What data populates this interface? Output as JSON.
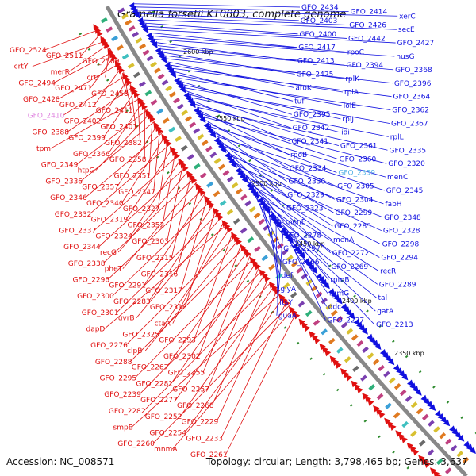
{
  "title": "Gramella forsetii KT0803, complete genome",
  "footer": {
    "accession": "Accession: NC_008571",
    "summary": "Topology: circular; Length: 3,798,465 bp; Genes: 3,637"
  },
  "colors": {
    "backbone": "#888888",
    "forward": "#e01010",
    "reverse": "#1010e0",
    "tick": "#2e8b2e",
    "highlight_blue": "#5ab4e6",
    "highlight_pink": "#e088e0"
  },
  "kbp_ticks": [
    "2600 kbp",
    "2550 kbp",
    "2500 kbp",
    "2450 kbp",
    "2400 kbp",
    "2350 kbp"
  ],
  "labels_left": [
    "GFO_2524",
    "GFO_2511",
    "GFO_2509",
    "crtY",
    "merR",
    "crtI",
    "GFO_2494",
    "GFO_2471",
    "GFO_2458",
    "GFO_2428",
    "GFO_2412",
    "GFO_2411",
    "GFO_2410",
    "GFO_2402",
    "GFO_2401",
    "GFO_2388",
    "GFO_2399",
    "GFO_2382",
    "tpm",
    "GFO_2366",
    "GFO_2358",
    "GFO_2349",
    "htpG",
    "GFO_2351",
    "GFO_2336",
    "GFO_2357",
    "GFO_2347",
    "GFO_2346",
    "GFO_2340",
    "GFO_2327",
    "GFO_2332",
    "GFO_2319",
    "GFO_2352",
    "GFO_2337",
    "GFO_2324",
    "GFO_2303",
    "GFO_2344",
    "recG",
    "GFO_2315",
    "GFO_2338",
    "pheT",
    "GFO_2316",
    "GFO_2296",
    "GFO_2291",
    "GFO_2317",
    "GFO_2300",
    "GFO_2283",
    "GFO_2318",
    "GFO_2301",
    "uvrB",
    "ctaA",
    "dapD",
    "GFO_2325",
    "GFO_2293",
    "GFO_2276",
    "clpB",
    "GFO_2302",
    "GFO_2288",
    "GFO_2267",
    "GFO_2255",
    "GFO_2295",
    "GFO_2281",
    "GFO_2257",
    "GFO_2239",
    "GFO_2277",
    "GFO_2268",
    "GFO_2282",
    "GFO_2252",
    "GFO_2229",
    "smpB",
    "GFO_2254",
    "GFO_2233",
    "GFO_2260",
    "mnmA",
    "GFO_2261"
  ],
  "labels_right": [
    "GFO_2434",
    "GFO_2414",
    "xerC",
    "GFO_2403",
    "GFO_2426",
    "secE",
    "GFO_2400",
    "GFO_2442",
    "GFO_2427",
    "GFO_2417",
    "rpoC",
    "nusG",
    "GFO_2413",
    "GFO_2394",
    "GFO_2368",
    "GFO_2425",
    "rplK",
    "GFO_2396",
    "aroK",
    "rplA",
    "GFO_2364",
    "tuf",
    "lolE",
    "GFO_2362",
    "GFO_2395",
    "rplJ",
    "GFO_2367",
    "GFO_2342",
    "idi",
    "rplL",
    "GFO_2341",
    "GFO_2361",
    "GFO_2335",
    "rpoB",
    "GFO_2360",
    "GFO_2320",
    "GFO_2334",
    "GFO_2359",
    "menC",
    "GFO_2330",
    "GFO_2305",
    "GFO_2345",
    "GFO_2329",
    "GFO_2304",
    "fabH",
    "GFO_2323",
    "GFO_2299",
    "GFO_2348",
    "menE",
    "GFO_2285",
    "GFO_2328",
    "GFO_2278",
    "menA",
    "GFO_2298",
    "GFO_2297",
    "GFO_2272",
    "GFO_2294",
    "GFO_2266",
    "GFO_2269",
    "recR",
    "def",
    "rpmB",
    "GFO_2289",
    "glyA",
    "rpmG",
    "tal",
    "ftsY",
    "ddc",
    "gatA",
    "guaA",
    "GFO_2227",
    "GFO_2213"
  ]
}
